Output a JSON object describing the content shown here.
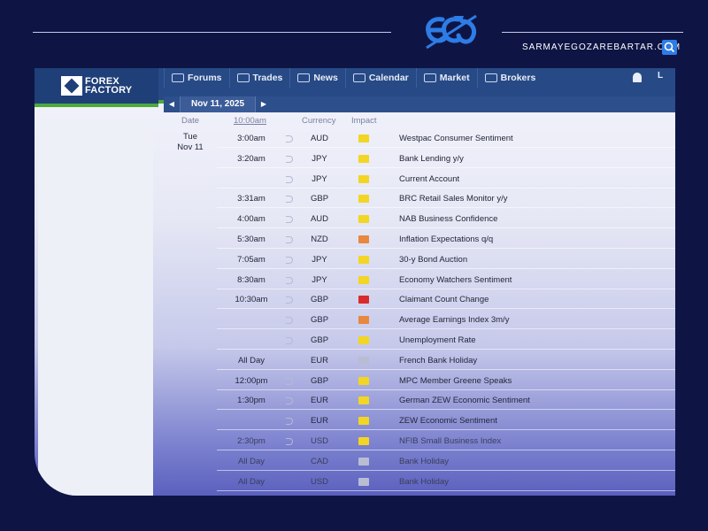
{
  "banner": {
    "site_url": "SARMAYEGOZAREBARTAR.COM",
    "accent": "#2e7ce6"
  },
  "navbar": {
    "logo_line1": "FOREX",
    "logo_line2": "FACTORY",
    "items": [
      {
        "label": "Forums",
        "icon": "chat-icon"
      },
      {
        "label": "Trades",
        "icon": "chart-icon"
      },
      {
        "label": "News",
        "icon": "globe-icon"
      },
      {
        "label": "Calendar",
        "icon": "calendar-icon"
      },
      {
        "label": "Market",
        "icon": "market-icon"
      },
      {
        "label": "Brokers",
        "icon": "brokers-icon"
      }
    ],
    "extra": "L"
  },
  "calendar": {
    "current_date": "Nov 11, 2025",
    "headers": {
      "date": "Date",
      "time": "10:00am",
      "currency": "Currency",
      "impact": "Impact"
    },
    "day_label_1": "Tue",
    "day_label_2": "Nov 11",
    "impact_colors": {
      "high": "#d92b2b",
      "medium": "#e8873d",
      "low": "#f2d623",
      "holiday": "#b9bdd3"
    },
    "rows": [
      {
        "time": "3:00am",
        "sound": true,
        "currency": "AUD",
        "impact": "low",
        "event": "Westpac Consumer Sentiment"
      },
      {
        "time": "3:20am",
        "sound": true,
        "currency": "JPY",
        "impact": "low",
        "event": "Bank Lending y/y"
      },
      {
        "time": "",
        "sound": true,
        "currency": "JPY",
        "impact": "low",
        "event": "Current Account"
      },
      {
        "time": "3:31am",
        "sound": true,
        "currency": "GBP",
        "impact": "low",
        "event": "BRC Retail Sales Monitor y/y"
      },
      {
        "time": "4:00am",
        "sound": true,
        "currency": "AUD",
        "impact": "low",
        "event": "NAB Business Confidence"
      },
      {
        "time": "5:30am",
        "sound": true,
        "currency": "NZD",
        "impact": "medium",
        "event": "Inflation Expectations q/q"
      },
      {
        "time": "7:05am",
        "sound": true,
        "currency": "JPY",
        "impact": "low",
        "event": "30-y Bond Auction"
      },
      {
        "time": "8:30am",
        "sound": true,
        "currency": "JPY",
        "impact": "low",
        "event": "Economy Watchers Sentiment"
      },
      {
        "time": "10:30am",
        "sound": true,
        "currency": "GBP",
        "impact": "high",
        "event": "Claimant Count Change"
      },
      {
        "time": "",
        "sound": true,
        "currency": "GBP",
        "impact": "medium",
        "event": "Average Earnings Index 3m/y"
      },
      {
        "time": "",
        "sound": true,
        "currency": "GBP",
        "impact": "low",
        "event": "Unemployment Rate"
      },
      {
        "time": "All Day",
        "sound": false,
        "currency": "EUR",
        "impact": "holiday",
        "event": "French Bank Holiday"
      },
      {
        "time": "12:00pm",
        "sound": true,
        "currency": "GBP",
        "impact": "low",
        "event": "MPC Member Greene Speaks"
      },
      {
        "time": "1:30pm",
        "sound": true,
        "currency": "EUR",
        "impact": "low",
        "event": "German ZEW Economic Sentiment"
      },
      {
        "time": "",
        "sound": true,
        "currency": "EUR",
        "impact": "low",
        "event": "ZEW Economic Sentiment"
      },
      {
        "time": "2:30pm",
        "sound": true,
        "currency": "USD",
        "impact": "low",
        "event": "NFIB Small Business Index"
      },
      {
        "time": "All Day",
        "sound": false,
        "currency": "CAD",
        "impact": "holiday",
        "event": "Bank Holiday"
      },
      {
        "time": "All Day",
        "sound": false,
        "currency": "USD",
        "impact": "holiday",
        "event": "Bank Holiday"
      }
    ]
  }
}
